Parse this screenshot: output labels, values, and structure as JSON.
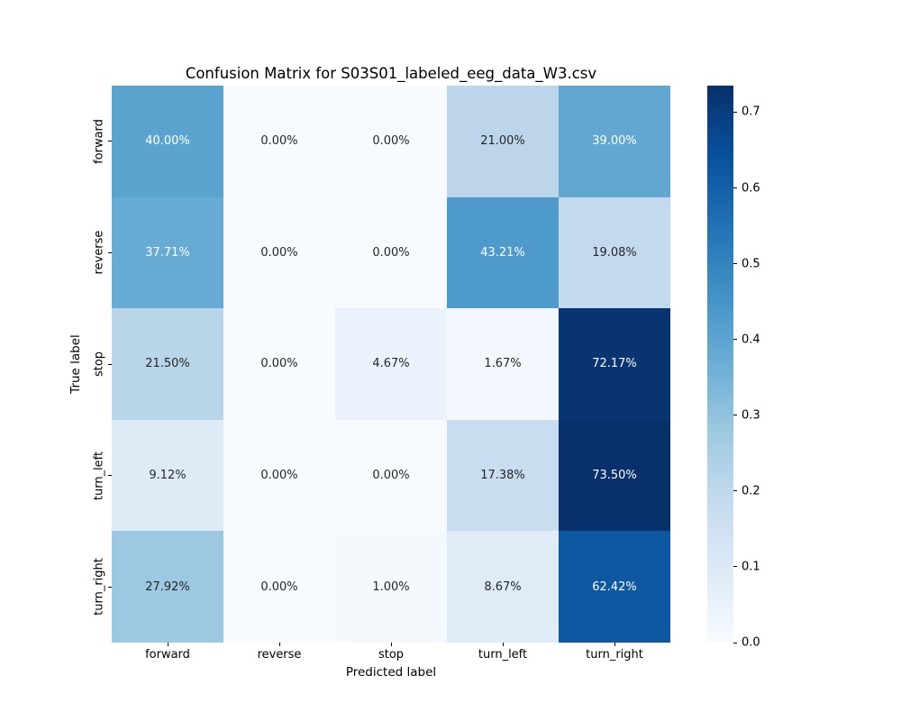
{
  "chart_data": {
    "type": "heatmap",
    "title": "Confusion Matrix for S03S01_labeled_eeg_data_W3.csv",
    "xlabel": "Predicted label",
    "ylabel": "True label",
    "x_categories": [
      "forward",
      "reverse",
      "stop",
      "turn_left",
      "turn_right"
    ],
    "y_categories": [
      "forward",
      "reverse",
      "stop",
      "turn_left",
      "turn_right"
    ],
    "values": [
      [
        0.4,
        0.0,
        0.0,
        0.21,
        0.39
      ],
      [
        0.3771,
        0.0,
        0.0,
        0.4321,
        0.1908
      ],
      [
        0.215,
        0.0,
        0.0467,
        0.0167,
        0.7217
      ],
      [
        0.0912,
        0.0,
        0.0,
        0.1738,
        0.735
      ],
      [
        0.2792,
        0.0,
        0.01,
        0.0867,
        0.6242
      ]
    ],
    "cell_labels": [
      [
        "40.00%",
        "0.00%",
        "0.00%",
        "21.00%",
        "39.00%"
      ],
      [
        "37.71%",
        "0.00%",
        "0.00%",
        "43.21%",
        "19.08%"
      ],
      [
        "21.50%",
        "0.00%",
        "4.67%",
        "1.67%",
        "72.17%"
      ],
      [
        "9.12%",
        "0.00%",
        "0.00%",
        "17.38%",
        "73.50%"
      ],
      [
        "27.92%",
        "0.00%",
        "1.00%",
        "8.67%",
        "62.42%"
      ]
    ],
    "vmin": 0.0,
    "vmax": 0.735,
    "colormap": "Blues",
    "colormap_stops": [
      "#f7fbff",
      "#deebf7",
      "#c6dbef",
      "#9ecae1",
      "#6baed6",
      "#4292c6",
      "#2171b5",
      "#08519c",
      "#08306b"
    ],
    "annotation_text_colors": {
      "light_cells": "#262626",
      "dark_cells": "#ffffff"
    },
    "colorbar": {
      "position": "right",
      "tick_labels": [
        "0.0",
        "0.1",
        "0.2",
        "0.3",
        "0.4",
        "0.5",
        "0.6",
        "0.7"
      ],
      "tick_values": [
        0.0,
        0.1,
        0.2,
        0.3,
        0.4,
        0.5,
        0.6,
        0.7
      ]
    },
    "grid": false,
    "legend_position": "none"
  }
}
